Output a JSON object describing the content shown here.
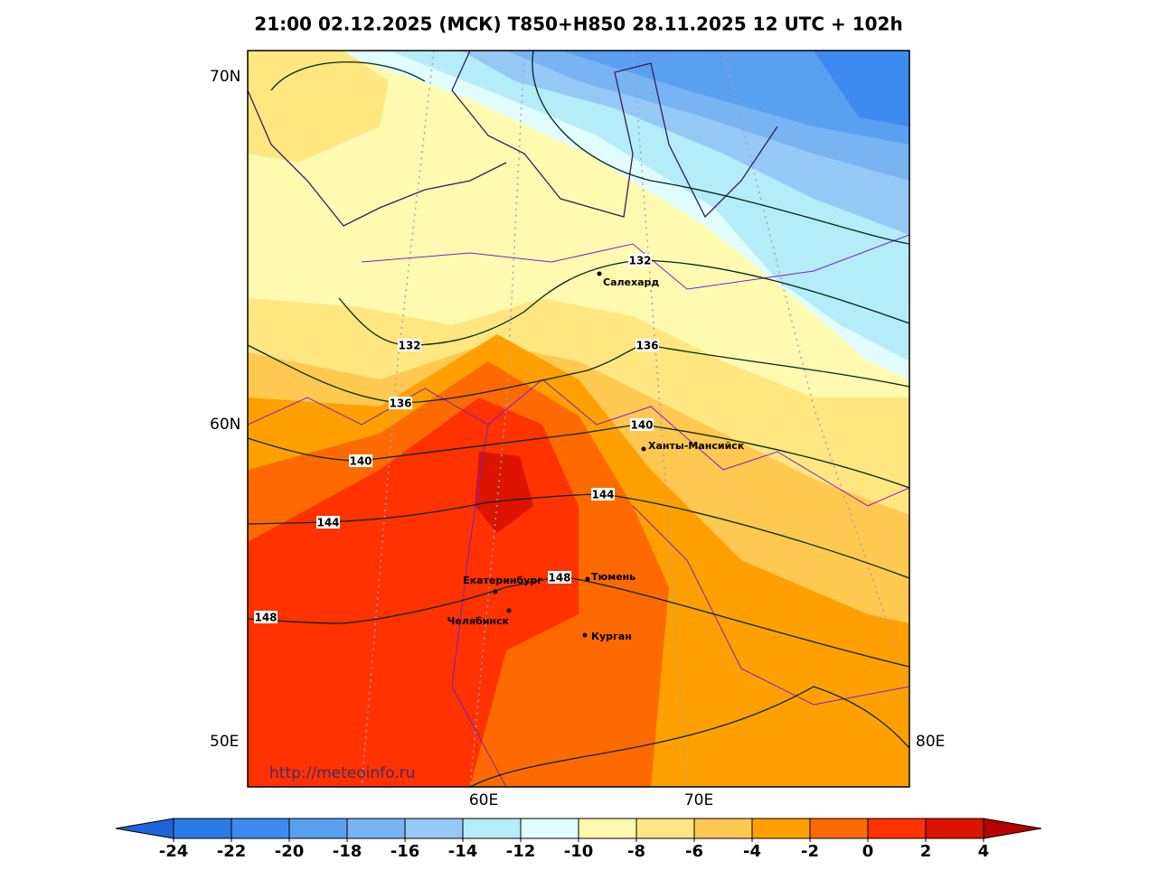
{
  "header": {
    "title": "21:00 02.12.2025 (МСК) T850+H850 28.11.2025 12 UTC + 102h"
  },
  "axis_labels": [
    "70N",
    "60N",
    "50E",
    "60E",
    "70E",
    "80E"
  ],
  "contour_labels": [
    132,
    132,
    136,
    136,
    140,
    140,
    144,
    144,
    148,
    148
  ],
  "cities": [
    "Салехард",
    "Ханты-Мансийск",
    "Екатеринбург",
    "Тюмень",
    "Челябинск",
    "Курган"
  ],
  "watermark": "http://meteoinfo.ru",
  "colorbar": {
    "ticks": [
      -24,
      -22,
      -20,
      -18,
      -16,
      -14,
      -12,
      -10,
      -8,
      -6,
      -4,
      -2,
      0,
      2,
      4
    ],
    "colors": [
      "#2c7ae5",
      "#3d8af0",
      "#5aa0f0",
      "#78b4f2",
      "#96c8f5",
      "#b4ecf7",
      "#e0fcff",
      "#fffab0",
      "#ffe680",
      "#ffc850",
      "#ffa000",
      "#ff6a00",
      "#ff3200",
      "#dc1400"
    ],
    "under_color": "#1e64dc",
    "over_color": "#b40000"
  }
}
